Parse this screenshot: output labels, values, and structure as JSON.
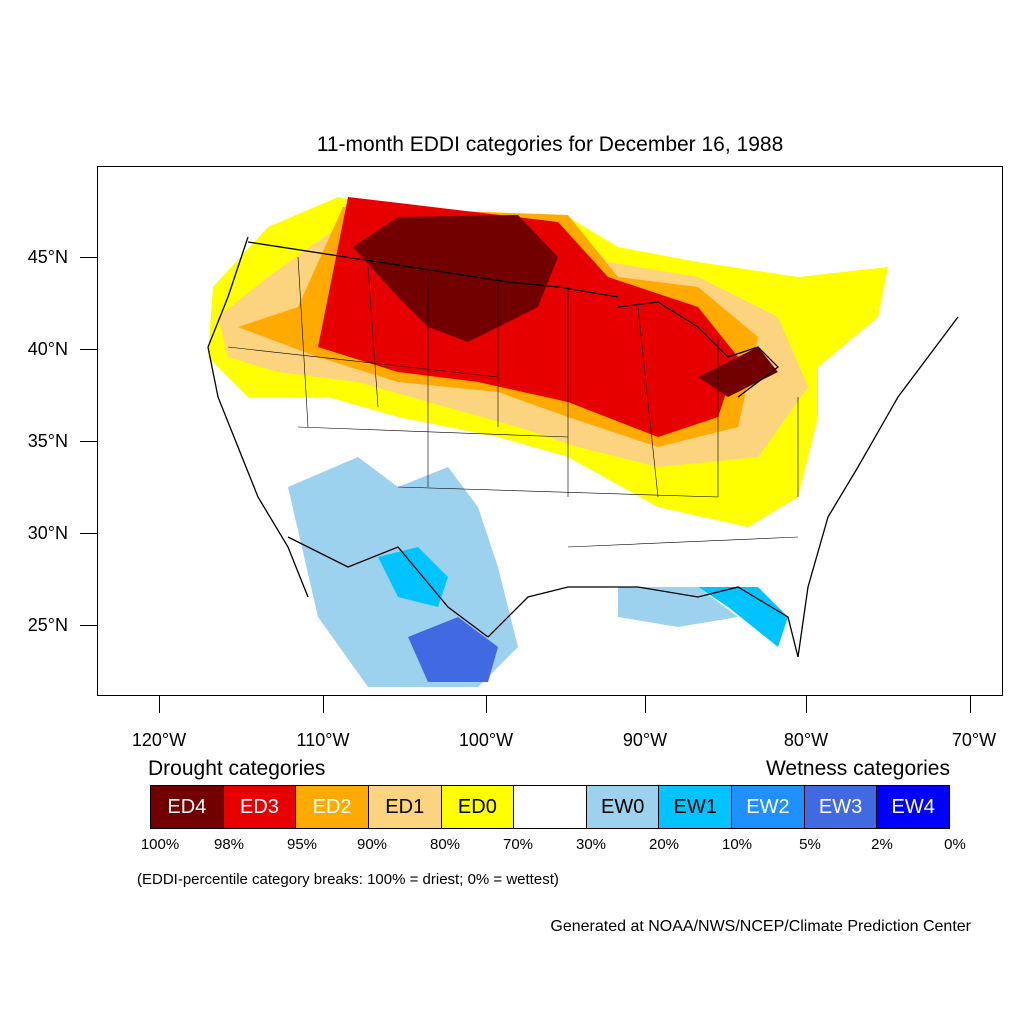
{
  "title": "11-month EDDI categories for December 16, 1988",
  "axes": {
    "lat_labels": [
      "45°N",
      "40°N",
      "35°N",
      "30°N",
      "25°N"
    ],
    "lon_labels": [
      "120°W",
      "110°W",
      "100°W",
      "90°W",
      "80°W",
      "70°W"
    ]
  },
  "legend": {
    "drought_title": "Drought categories",
    "wetness_title": "Wetness categories",
    "categories": [
      {
        "label": "ED4",
        "color": "#730000",
        "text_color": "#ffffff"
      },
      {
        "label": "ED3",
        "color": "#e60000",
        "text_color": "#ffffff"
      },
      {
        "label": "ED2",
        "color": "#ffaa00",
        "text_color": "#ffffff"
      },
      {
        "label": "ED1",
        "color": "#fcd37f",
        "text_color": "#000000"
      },
      {
        "label": "ED0",
        "color": "#ffff00",
        "text_color": "#000000"
      },
      {
        "label": "",
        "color": "#ffffff",
        "text_color": "#000000"
      },
      {
        "label": "EW0",
        "color": "#9dd2ef",
        "text_color": "#000000"
      },
      {
        "label": "EW1",
        "color": "#00c3ff",
        "text_color": "#000000"
      },
      {
        "label": "EW2",
        "color": "#1e90ff",
        "text_color": "#ffffff"
      },
      {
        "label": "EW3",
        "color": "#4169e1",
        "text_color": "#ffffff"
      },
      {
        "label": "EW4",
        "color": "#0000ff",
        "text_color": "#ffffff"
      }
    ],
    "breaks": [
      "100%",
      "98%",
      "95%",
      "90%",
      "80%",
      "70%",
      "30%",
      "20%",
      "10%",
      "5%",
      "2%",
      "0%"
    ]
  },
  "note": "(EDDI-percentile category breaks: 100% = driest; 0% = wettest)",
  "credit": "Generated at NOAA/NWS/NCEP/Climate Prediction Center"
}
